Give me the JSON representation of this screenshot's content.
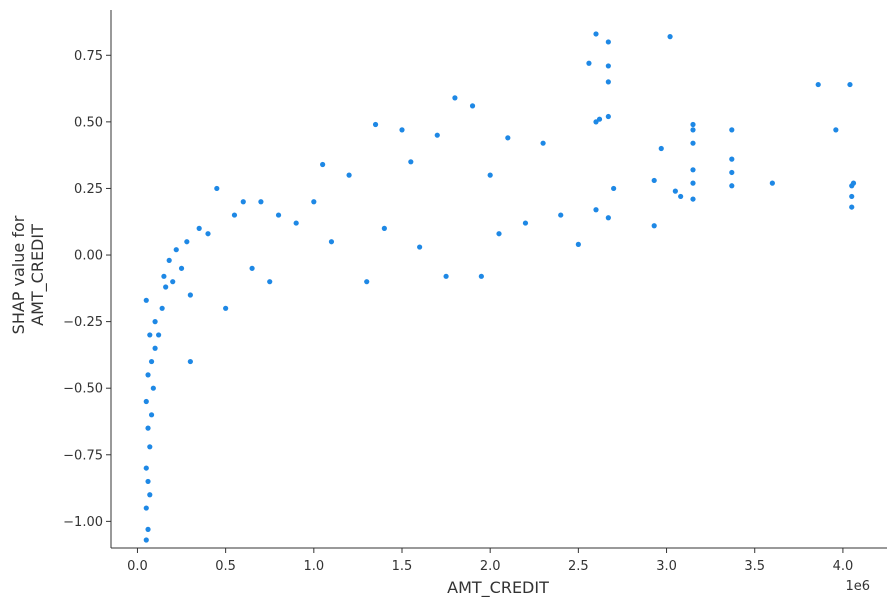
{
  "chart_data": {
    "type": "scatter",
    "title": "",
    "xlabel": "AMT_CREDIT",
    "ylabel_lines": [
      "SHAP value for",
      "AMT_CREDIT"
    ],
    "x_offset_label": "1e6",
    "x_ticks": [
      0.0,
      0.5,
      1.0,
      1.5,
      2.0,
      2.5,
      3.0,
      3.5,
      4.0
    ],
    "x_tick_labels": [
      "0.0",
      "0.5",
      "1.0",
      "1.5",
      "2.0",
      "2.5",
      "3.0",
      "3.5",
      "4.0"
    ],
    "y_ticks": [
      -1.0,
      -0.75,
      -0.5,
      -0.25,
      0.0,
      0.25,
      0.5,
      0.75
    ],
    "y_tick_labels": [
      "−1.00",
      "−0.75",
      "−0.50",
      "−0.25",
      "0.00",
      "0.25",
      "0.50",
      "0.75"
    ],
    "xlim": [
      -0.15,
      4.25
    ],
    "ylim": [
      -1.1,
      0.92
    ],
    "grid": false,
    "point_color": "#1E88E5",
    "series": [
      {
        "values": [
          [
            0.05,
            -1.07
          ],
          [
            0.06,
            -1.03
          ],
          [
            0.05,
            -0.95
          ],
          [
            0.07,
            -0.9
          ],
          [
            0.06,
            -0.85
          ],
          [
            0.05,
            -0.8
          ],
          [
            0.07,
            -0.72
          ],
          [
            0.06,
            -0.65
          ],
          [
            0.08,
            -0.6
          ],
          [
            0.05,
            -0.55
          ],
          [
            0.09,
            -0.5
          ],
          [
            0.06,
            -0.45
          ],
          [
            0.08,
            -0.4
          ],
          [
            0.1,
            -0.35
          ],
          [
            0.07,
            -0.3
          ],
          [
            0.12,
            -0.3
          ],
          [
            0.1,
            -0.25
          ],
          [
            0.14,
            -0.2
          ],
          [
            0.05,
            -0.17
          ],
          [
            0.16,
            -0.12
          ],
          [
            0.15,
            -0.08
          ],
          [
            0.2,
            -0.1
          ],
          [
            0.18,
            -0.02
          ],
          [
            0.22,
            0.02
          ],
          [
            0.25,
            -0.05
          ],
          [
            0.28,
            0.05
          ],
          [
            0.3,
            -0.15
          ],
          [
            0.3,
            -0.4
          ],
          [
            0.35,
            0.1
          ],
          [
            0.4,
            0.08
          ],
          [
            0.45,
            0.25
          ],
          [
            0.5,
            -0.2
          ],
          [
            0.55,
            0.15
          ],
          [
            0.6,
            0.2
          ],
          [
            0.65,
            -0.05
          ],
          [
            0.7,
            0.2
          ],
          [
            0.75,
            -0.1
          ],
          [
            0.8,
            0.15
          ],
          [
            0.9,
            0.12
          ],
          [
            1.0,
            0.2
          ],
          [
            1.05,
            0.34
          ],
          [
            1.1,
            0.05
          ],
          [
            1.2,
            0.3
          ],
          [
            1.3,
            -0.1
          ],
          [
            1.35,
            0.49
          ],
          [
            1.4,
            0.1
          ],
          [
            1.5,
            0.47
          ],
          [
            1.55,
            0.35
          ],
          [
            1.6,
            0.03
          ],
          [
            1.7,
            0.45
          ],
          [
            1.75,
            -0.08
          ],
          [
            1.8,
            0.59
          ],
          [
            1.9,
            0.56
          ],
          [
            1.95,
            -0.08
          ],
          [
            2.0,
            0.3
          ],
          [
            2.05,
            0.08
          ],
          [
            2.1,
            0.44
          ],
          [
            2.2,
            0.12
          ],
          [
            2.3,
            0.42
          ],
          [
            2.4,
            0.15
          ],
          [
            2.5,
            0.04
          ],
          [
            2.56,
            0.72
          ],
          [
            2.6,
            0.83
          ],
          [
            2.6,
            0.5
          ],
          [
            2.6,
            0.17
          ],
          [
            2.62,
            0.51
          ],
          [
            2.67,
            0.8
          ],
          [
            2.67,
            0.71
          ],
          [
            2.67,
            0.65
          ],
          [
            2.67,
            0.52
          ],
          [
            2.67,
            0.14
          ],
          [
            2.7,
            0.25
          ],
          [
            2.93,
            0.28
          ],
          [
            2.93,
            0.11
          ],
          [
            2.97,
            0.4
          ],
          [
            3.02,
            0.82
          ],
          [
            3.05,
            0.24
          ],
          [
            3.08,
            0.22
          ],
          [
            3.15,
            0.49
          ],
          [
            3.15,
            0.47
          ],
          [
            3.15,
            0.42
          ],
          [
            3.15,
            0.32
          ],
          [
            3.15,
            0.27
          ],
          [
            3.15,
            0.21
          ],
          [
            3.37,
            0.47
          ],
          [
            3.37,
            0.36
          ],
          [
            3.37,
            0.31
          ],
          [
            3.37,
            0.26
          ],
          [
            3.6,
            0.27
          ],
          [
            3.86,
            0.64
          ],
          [
            3.96,
            0.47
          ],
          [
            4.04,
            0.64
          ],
          [
            4.05,
            0.26
          ],
          [
            4.05,
            0.22
          ],
          [
            4.05,
            0.18
          ],
          [
            4.06,
            0.27
          ]
        ]
      }
    ]
  }
}
